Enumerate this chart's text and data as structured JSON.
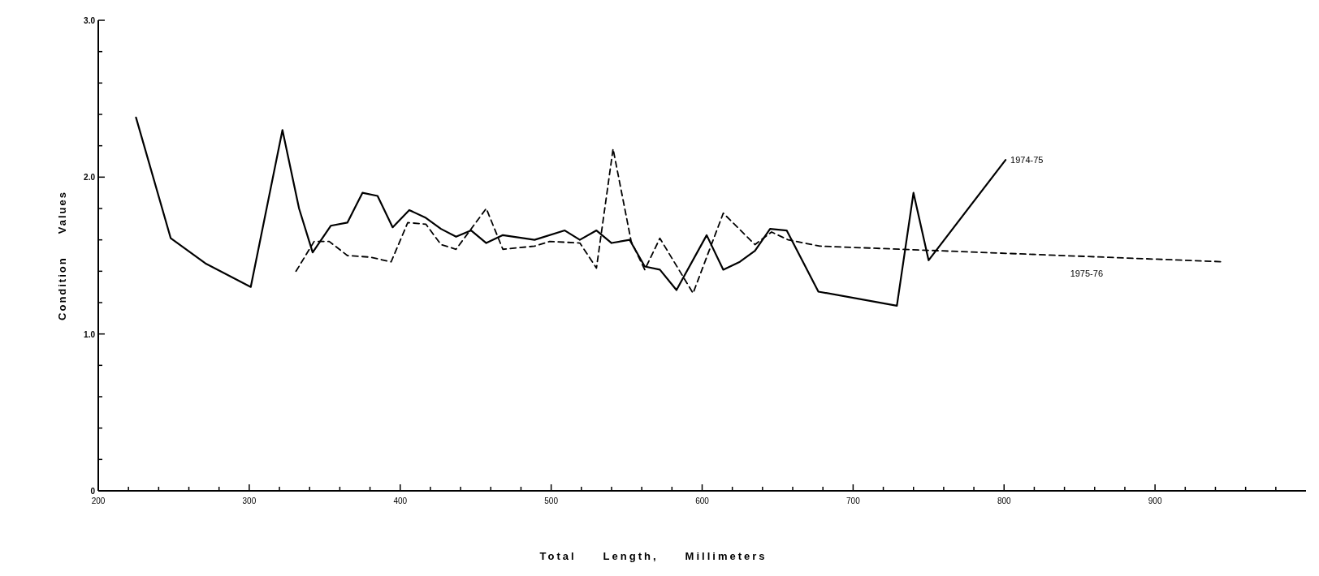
{
  "chart_data": {
    "type": "line",
    "xlabel": "Total     Length,     Millimeters",
    "ylabel": "Condition     Values",
    "xlim": [
      200,
      1000
    ],
    "ylim": [
      0,
      3
    ],
    "xticks": [
      200,
      {
        "value": 220,
        "label": null
      },
      {
        "value": 240,
        "label": null
      },
      {
        "value": 260,
        "label": null
      },
      {
        "value": 280,
        "label": null
      },
      300,
      {
        "value": 320,
        "label": null
      },
      {
        "value": 340,
        "label": null
      },
      {
        "value": 360,
        "label": null
      },
      {
        "value": 380,
        "label": null
      },
      400,
      {
        "value": 420,
        "label": null
      },
      {
        "value": 440,
        "label": null
      },
      {
        "value": 460,
        "label": null
      },
      {
        "value": 480,
        "label": null
      },
      500,
      {
        "value": 520,
        "label": null
      },
      {
        "value": 540,
        "label": null
      },
      {
        "value": 560,
        "label": null
      },
      {
        "value": 580,
        "label": null
      },
      600,
      {
        "value": 620,
        "label": null
      },
      {
        "value": 640,
        "label": null
      },
      {
        "value": 660,
        "label": null
      },
      {
        "value": 680,
        "label": null
      },
      700,
      {
        "value": 720,
        "label": null
      },
      {
        "value": 740,
        "label": null
      },
      {
        "value": 760,
        "label": null
      },
      {
        "value": 780,
        "label": null
      },
      800,
      {
        "value": 820,
        "label": null
      },
      {
        "value": 840,
        "label": null
      },
      {
        "value": 860,
        "label": null
      },
      {
        "value": 880,
        "label": null
      },
      900,
      {
        "value": 920,
        "label": null
      },
      {
        "value": 940,
        "label": null
      },
      {
        "value": 960,
        "label": null
      },
      {
        "value": 980,
        "label": null
      }
    ],
    "yticks": [
      0,
      {
        "value": 0.2,
        "label": null
      },
      {
        "value": 0.4,
        "label": null
      },
      {
        "value": 0.6,
        "label": null
      },
      {
        "value": 0.8,
        "label": null
      },
      {
        "value": 1,
        "label": "1.0"
      },
      {
        "value": 1.2,
        "label": null
      },
      {
        "value": 1.4,
        "label": null
      },
      {
        "value": 1.6,
        "label": null
      },
      {
        "value": 1.8,
        "label": null
      },
      {
        "value": 2,
        "label": "2.0"
      },
      {
        "value": 2.2,
        "label": null
      },
      {
        "value": 2.4,
        "label": null
      },
      {
        "value": 2.6,
        "label": null
      },
      {
        "value": 2.8,
        "label": null
      },
      {
        "value": 3,
        "label": "3.0"
      }
    ],
    "grid": false,
    "marker": "none",
    "series": [
      {
        "name": "1974-75",
        "color": "#000000",
        "line_style": "solid",
        "x": [
          225,
          248,
          271,
          301,
          322,
          333,
          342,
          354,
          365,
          375,
          385,
          395,
          406,
          417,
          427,
          437,
          447,
          457,
          468,
          489,
          509,
          519,
          530,
          540,
          552,
          562,
          572,
          583,
          603,
          614,
          625,
          635,
          645,
          656,
          677,
          729,
          740,
          750,
          801
        ],
        "values": [
          2.38,
          1.61,
          1.45,
          1.3,
          2.3,
          1.8,
          1.52,
          1.69,
          1.71,
          1.9,
          1.88,
          1.68,
          1.79,
          1.74,
          1.67,
          1.62,
          1.66,
          1.58,
          1.63,
          1.6,
          1.66,
          1.6,
          1.66,
          1.58,
          1.6,
          1.43,
          1.41,
          1.28,
          1.63,
          1.41,
          1.46,
          1.53,
          1.67,
          1.66,
          1.27,
          1.18,
          1.9,
          1.47,
          2.11
        ]
      },
      {
        "name": "1975-76",
        "color": "#000000",
        "line_style": "dashed",
        "x": [
          331,
          343,
          353,
          365,
          380,
          394,
          405,
          417,
          427,
          437,
          457,
          468,
          489,
          499,
          519,
          530,
          541,
          553,
          562,
          572,
          594,
          614,
          635,
          646,
          657,
          678,
          732,
          946
        ],
        "values": [
          1.4,
          1.59,
          1.59,
          1.5,
          1.49,
          1.46,
          1.71,
          1.7,
          1.57,
          1.54,
          1.8,
          1.54,
          1.56,
          1.59,
          1.58,
          1.42,
          2.18,
          1.59,
          1.41,
          1.61,
          1.26,
          1.77,
          1.57,
          1.65,
          1.6,
          1.56,
          1.54,
          1.46
        ]
      }
    ]
  }
}
